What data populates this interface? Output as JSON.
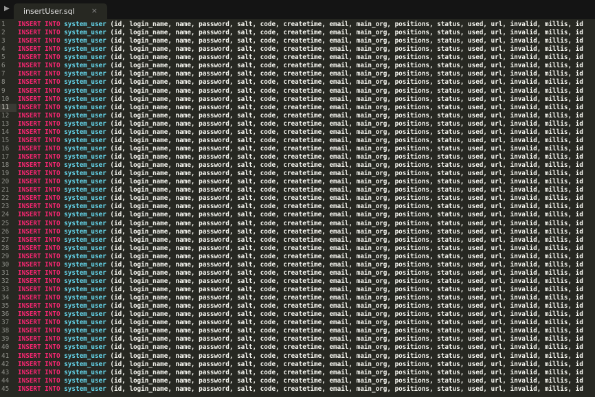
{
  "tab": {
    "title": "insertUser.sql"
  },
  "editor": {
    "lines": [
      {
        "number": 1,
        "keyword": "INSERT INTO",
        "table": "system_user",
        "columns": "(id, login_name, name, password, salt, code, createtime, email, main_org, positions, status, used, url, invalid, millis, id"
      },
      {
        "number": 2,
        "keyword": "INSERT INTO",
        "table": "system_user",
        "columns": "(id, login_name, name, password, salt, code, createtime, email, main_org, positions, status, used, url, invalid, millis, id"
      },
      {
        "number": 3,
        "keyword": "INSERT INTO",
        "table": "system_user",
        "columns": "(id, login_name, name, password, salt, code, createtime, email, main_org, positions, status, used, url, invalid, millis, id"
      },
      {
        "number": 4,
        "keyword": "INSERT INTO",
        "table": "system_user",
        "columns": "(id, login_name, name, password, salt, code, createtime, email, main_org, positions, status, used, url, invalid, millis, id"
      },
      {
        "number": 5,
        "keyword": "INSERT INTO",
        "table": "system_user",
        "columns": "(id, login_name, name, password, salt, code, createtime, email, main_org, positions, status, used, url, invalid, millis, id"
      },
      {
        "number": 6,
        "keyword": "INSERT INTO",
        "table": "system_user",
        "columns": "(id, login_name, name, password, salt, code, createtime, email, main_org, positions, status, used, url, invalid, millis, id"
      },
      {
        "number": 7,
        "keyword": "INSERT INTO",
        "table": "system_user",
        "columns": "(id, login_name, name, password, salt, code, createtime, email, main_org, positions, status, used, url, invalid, millis, id"
      },
      {
        "number": 8,
        "keyword": "INSERT INTO",
        "table": "system_user",
        "columns": "(id, login_name, name, password, salt, code, createtime, email, main_org, positions, status, used, url, invalid, millis, id"
      },
      {
        "number": 9,
        "keyword": "INSERT INTO",
        "table": "system_user",
        "columns": "(id, login_name, name, password, salt, code, createtime, email, main_org, positions, status, used, url, invalid, millis, id"
      },
      {
        "number": 10,
        "keyword": "INSERT INTO",
        "table": "system_user",
        "columns": "(id, login_name, name, password, salt, code, createtime, email, main_org, positions, status, used, url, invalid, millis, id"
      },
      {
        "number": 11,
        "keyword": "INSERT INTO",
        "table": "system_user",
        "columns": "(id, login_name, name, password, salt, code, createtime, email, main_org, positions, status, used, url, invalid, millis, id"
      },
      {
        "number": 12,
        "keyword": "INSERT INTO",
        "table": "system_user",
        "columns": "(id, login_name, name, password, salt, code, createtime, email, main_org, positions, status, used, url, invalid, millis, id"
      },
      {
        "number": 13,
        "keyword": "INSERT INTO",
        "table": "system_user",
        "columns": "(id, login_name, name, password, salt, code, createtime, email, main_org, positions, status, used, url, invalid, millis, id"
      },
      {
        "number": 14,
        "keyword": "INSERT INTO",
        "table": "system_user",
        "columns": "(id, login_name, name, password, salt, code, createtime, email, main_org, positions, status, used, url, invalid, millis, id"
      },
      {
        "number": 15,
        "keyword": "INSERT INTO",
        "table": "system_user",
        "columns": "(id, login_name, name, password, salt, code, createtime, email, main_org, positions, status, used, url, invalid, millis, id"
      },
      {
        "number": 16,
        "keyword": "INSERT INTO",
        "table": "system_user",
        "columns": "(id, login_name, name, password, salt, code, createtime, email, main_org, positions, status, used, url, invalid, millis, id"
      },
      {
        "number": 17,
        "keyword": "INSERT INTO",
        "table": "system_user",
        "columns": "(id, login_name, name, password, salt, code, createtime, email, main_org, positions, status, used, url, invalid, millis, id"
      },
      {
        "number": 18,
        "keyword": "INSERT INTO",
        "table": "system_user",
        "columns": "(id, login_name, name, password, salt, code, createtime, email, main_org, positions, status, used, url, invalid, millis, id"
      },
      {
        "number": 19,
        "keyword": "INSERT INTO",
        "table": "system_user",
        "columns": "(id, login_name, name, password, salt, code, createtime, email, main_org, positions, status, used, url, invalid, millis, id"
      },
      {
        "number": 20,
        "keyword": "INSERT INTO",
        "table": "system_user",
        "columns": "(id, login_name, name, password, salt, code, createtime, email, main_org, positions, status, used, url, invalid, millis, id"
      },
      {
        "number": 21,
        "keyword": "INSERT INTO",
        "table": "system_user",
        "columns": "(id, login_name, name, password, salt, code, createtime, email, main_org, positions, status, used, url, invalid, millis, id"
      },
      {
        "number": 22,
        "keyword": "INSERT INTO",
        "table": "system_user",
        "columns": "(id, login_name, name, password, salt, code, createtime, email, main_org, positions, status, used, url, invalid, millis, id"
      },
      {
        "number": 23,
        "keyword": "INSERT INTO",
        "table": "system_user",
        "columns": "(id, login_name, name, password, salt, code, createtime, email, main_org, positions, status, used, url, invalid, millis, id"
      },
      {
        "number": 24,
        "keyword": "INSERT INTO",
        "table": "system_user",
        "columns": "(id, login_name, name, password, salt, code, createtime, email, main_org, positions, status, used, url, invalid, millis, id"
      },
      {
        "number": 25,
        "keyword": "INSERT INTO",
        "table": "system_user",
        "columns": "(id, login_name, name, password, salt, code, createtime, email, main_org, positions, status, used, url, invalid, millis, id"
      },
      {
        "number": 26,
        "keyword": "INSERT INTO",
        "table": "system_user",
        "columns": "(id, login_name, name, password, salt, code, createtime, email, main_org, positions, status, used, url, invalid, millis, id"
      },
      {
        "number": 27,
        "keyword": "INSERT INTO",
        "table": "system_user",
        "columns": "(id, login_name, name, password, salt, code, createtime, email, main_org, positions, status, used, url, invalid, millis, id"
      },
      {
        "number": 28,
        "keyword": "INSERT INTO",
        "table": "system_user",
        "columns": "(id, login_name, name, password, salt, code, createtime, email, main_org, positions, status, used, url, invalid, millis, id"
      },
      {
        "number": 29,
        "keyword": "INSERT INTO",
        "table": "system_user",
        "columns": "(id, login_name, name, password, salt, code, createtime, email, main_org, positions, status, used, url, invalid, millis, id"
      },
      {
        "number": 30,
        "keyword": "INSERT INTO",
        "table": "system_user",
        "columns": "(id, login_name, name, password, salt, code, createtime, email, main_org, positions, status, used, url, invalid, millis, id"
      },
      {
        "number": 31,
        "keyword": "INSERT INTO",
        "table": "system_user",
        "columns": "(id, login_name, name, password, salt, code, createtime, email, main_org, positions, status, used, url, invalid, millis, id"
      },
      {
        "number": 32,
        "keyword": "INSERT INTO",
        "table": "system_user",
        "columns": "(id, login_name, name, password, salt, code, createtime, email, main_org, positions, status, used, url, invalid, millis, id"
      },
      {
        "number": 33,
        "keyword": "INSERT INTO",
        "table": "system_user",
        "columns": "(id, login_name, name, password, salt, code, createtime, email, main_org, positions, status, used, url, invalid, millis, id"
      },
      {
        "number": 34,
        "keyword": "INSERT INTO",
        "table": "system_user",
        "columns": "(id, login_name, name, password, salt, code, createtime, email, main_org, positions, status, used, url, invalid, millis, id"
      },
      {
        "number": 35,
        "keyword": "INSERT INTO",
        "table": "system_user",
        "columns": "(id, login_name, name, password, salt, code, createtime, email, main_org, positions, status, used, url, invalid, millis, id"
      },
      {
        "number": 36,
        "keyword": "INSERT INTO",
        "table": "system_user",
        "columns": "(id, login_name, name, password, salt, code, createtime, email, main_org, positions, status, used, url, invalid, millis, id"
      },
      {
        "number": 37,
        "keyword": "INSERT INTO",
        "table": "system_user",
        "columns": "(id, login_name, name, password, salt, code, createtime, email, main_org, positions, status, used, url, invalid, millis, id"
      },
      {
        "number": 38,
        "keyword": "INSERT INTO",
        "table": "system_user",
        "columns": "(id, login_name, name, password, salt, code, createtime, email, main_org, positions, status, used, url, invalid, millis, id"
      },
      {
        "number": 39,
        "keyword": "INSERT INTO",
        "table": "system_user",
        "columns": "(id, login_name, name, password, salt, code, createtime, email, main_org, positions, status, used, url, invalid, millis, id"
      },
      {
        "number": 40,
        "keyword": "INSERT INTO",
        "table": "system_user",
        "columns": "(id, login_name, name, password, salt, code, createtime, email, main_org, positions, status, used, url, invalid, millis, id"
      },
      {
        "number": 41,
        "keyword": "INSERT INTO",
        "table": "system_user",
        "columns": "(id, login_name, name, password, salt, code, createtime, email, main_org, positions, status, used, url, invalid, millis, id"
      },
      {
        "number": 42,
        "keyword": "INSERT INTO",
        "table": "system_user",
        "columns": "(id, login_name, name, password, salt, code, createtime, email, main_org, positions, status, used, url, invalid, millis, id"
      },
      {
        "number": 43,
        "keyword": "INSERT INTO",
        "table": "system_user",
        "columns": "(id, login_name, name, password, salt, code, createtime, email, main_org, positions, status, used, url, invalid, millis, id"
      },
      {
        "number": 44,
        "keyword": "INSERT INTO",
        "table": "system_user",
        "columns": "(id, login_name, name, password, salt, code, createtime, email, main_org, positions, status, used, url, invalid, millis, id"
      },
      {
        "number": 45,
        "keyword": "INSERT INTO",
        "table": "system_user",
        "columns": "(id, login_name, name, password, salt, code, createtime, email, main_org, positions, status, used, url, invalid, millis, id"
      }
    ]
  }
}
